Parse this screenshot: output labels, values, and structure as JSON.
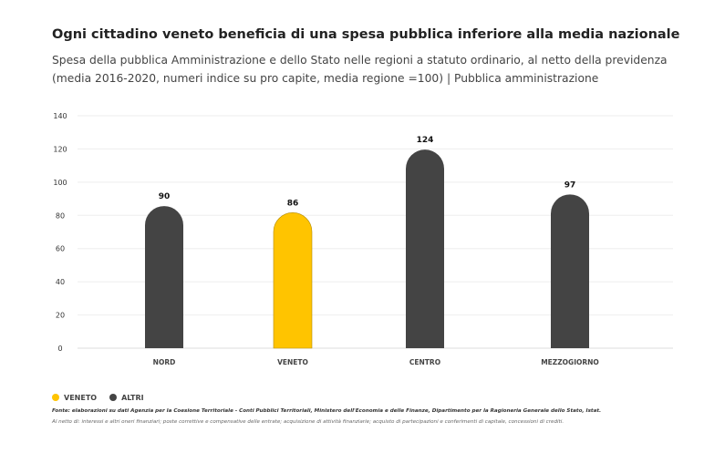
{
  "header": {
    "title": "Ogni cittadino veneto beneficia di una spesa pubblica inferiore alla media nazionale",
    "subtitle": "Spesa della pubblica Amministrazione e dello Stato nelle regioni a statuto ordinario, al netto della previdenza (media 2016-2020, numeri indice su pro capite, media regione =100)  |  Pubblica amministrazione"
  },
  "chart_data": {
    "type": "bar",
    "categories": [
      "NORD",
      "VENETO",
      "CENTRO",
      "MEZZOGIORNO"
    ],
    "values": [
      90,
      86,
      124,
      97
    ],
    "colors": [
      "#444444",
      "#FFC400",
      "#444444",
      "#444444"
    ],
    "ylim": [
      0,
      140
    ],
    "yticks": [
      0,
      20,
      40,
      60,
      80,
      100,
      120,
      140
    ],
    "grid": true,
    "legend_position": "bottom-left",
    "legend": [
      {
        "name": "VENETO",
        "color": "#FFC400"
      },
      {
        "name": "ALTRI",
        "color": "#444444"
      }
    ]
  },
  "footer": {
    "source": "Fonte: elaborazioni su dati Agenzia per la Coesione Territoriale - Conti Pubblici Territoriali, Ministero dell'Economia e delle Finanze, Dipartimento per la Ragioneria Generale dello Stato, Istat.",
    "note": "Al netto di: interessi e altri oneri finanziari; poste correttive e compensative delle entrate; acquisizione di attività finanziarie; acquisto di partecipazioni e conferimenti di capitale, concessioni di crediti."
  }
}
